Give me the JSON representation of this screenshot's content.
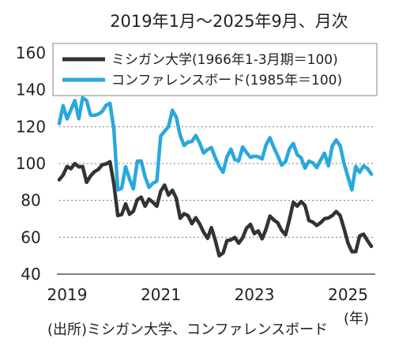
{
  "chart_data": {
    "type": "line",
    "title": "2019年1月～2025年9月、月次",
    "source": "(出所)ミシガン大学、コンファレンスボード",
    "xlabel": "(年)",
    "ylabel": "",
    "ylim": [
      40,
      160
    ],
    "yticks": [
      "160",
      "140",
      "120",
      "100",
      "80",
      "60",
      "40"
    ],
    "xlim": [
      2019.0,
      2025.75
    ],
    "xticks": [
      {
        "value": 2019,
        "label": "2019"
      },
      {
        "value": 2021,
        "label": "2021"
      },
      {
        "value": 2023,
        "label": "2023"
      },
      {
        "value": 2025,
        "label": "2025"
      }
    ],
    "grid": {
      "horizontal": true,
      "style": "dotted",
      "values": [
        60,
        80,
        100,
        120,
        140
      ]
    },
    "legend_position": "top",
    "series": [
      {
        "name": "ミシガン大学(1966年1-3月期＝100)",
        "color": "#333333",
        "start": "2019-01",
        "values": [
          91.2,
          93.8,
          98.4,
          97.2,
          100.0,
          98.2,
          98.4,
          89.8,
          93.2,
          95.5,
          96.8,
          99.3,
          99.8,
          101.0,
          89.1,
          71.8,
          72.3,
          78.1,
          72.5,
          74.1,
          80.4,
          81.8,
          76.9,
          80.7,
          79.0,
          76.8,
          84.9,
          88.3,
          82.9,
          85.5,
          81.2,
          70.3,
          72.8,
          71.7,
          67.4,
          70.6,
          67.2,
          62.8,
          59.4,
          65.2,
          58.4,
          50.0,
          51.5,
          58.2,
          58.6,
          59.9,
          56.8,
          59.7,
          64.9,
          67.0,
          62.0,
          63.5,
          59.2,
          64.4,
          71.5,
          69.4,
          67.9,
          63.8,
          61.3,
          69.7,
          79.0,
          76.9,
          79.4,
          77.2,
          69.1,
          68.2,
          66.4,
          67.9,
          70.1,
          70.5,
          71.8,
          74.0,
          71.7,
          64.7,
          57.0,
          52.2,
          52.2,
          60.7,
          61.7,
          58.2,
          55.1
        ]
      },
      {
        "name": "コンファレンスボード(1985年＝100)",
        "color": "#2aa8dc",
        "start": "2019-01",
        "values": [
          121.7,
          131.4,
          124.2,
          129.2,
          134.1,
          124.3,
          135.7,
          134.2,
          126.3,
          126.1,
          126.8,
          128.2,
          131.6,
          132.6,
          118.8,
          85.7,
          86.6,
          98.3,
          91.7,
          86.3,
          101.3,
          101.4,
          92.9,
          87.1,
          89.3,
          90.4,
          114.9,
          117.5,
          120.0,
          128.9,
          125.1,
          115.2,
          109.8,
          111.6,
          111.9,
          115.2,
          111.1,
          105.7,
          107.6,
          108.6,
          103.2,
          98.4,
          95.3,
          103.6,
          107.8,
          102.2,
          101.4,
          109.0,
          106.0,
          103.4,
          104.0,
          103.7,
          102.5,
          110.1,
          114.0,
          108.7,
          104.3,
          99.1,
          101.0,
          108.0,
          110.9,
          104.8,
          103.1,
          97.5,
          101.3,
          100.4,
          97.8,
          101.9,
          105.6,
          98.7,
          109.6,
          112.8,
          109.5,
          100.1,
          92.9,
          85.7,
          98.4,
          95.2,
          98.7,
          97.4,
          94.2
        ]
      }
    ]
  }
}
